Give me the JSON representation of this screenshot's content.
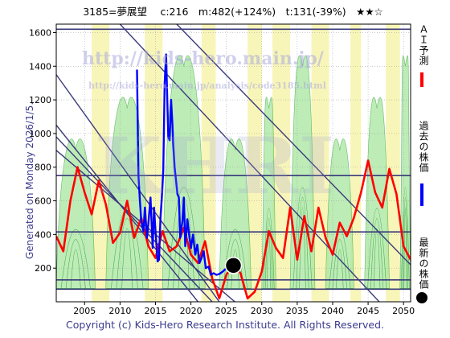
{
  "header": {
    "title": "3185=夢展望　 c:216　m:482(+124%)　t:131(-39%)　★★☆"
  },
  "side_note": "Generated on Monday 2026/1/5.",
  "footer": {
    "copyright": "Copyright (c) Kids-Hero Research Institute. All Rights Reserved."
  },
  "watermarks": {
    "url1": "http://kids-hero.main.jp/",
    "url2": "http://kids-hero.main.jp/analysis/code3185.html",
    "big": "KHRI"
  },
  "legend": {
    "ai": "ＡＩ予測",
    "past": "過去の株価",
    "latest": "最新の株価"
  },
  "colors": {
    "ai_line": "#ff0000",
    "past_line": "#0000ff",
    "latest_dot": "#000000",
    "trend_lines": "#3a3a7a",
    "green_band": "#a8e6a0",
    "yellow_band": "#f6f3a8"
  },
  "chart_data": {
    "type": "line",
    "xlim": [
      2001,
      2051
    ],
    "ylim": [
      0,
      1650
    ],
    "x_ticks": [
      2005,
      2010,
      2015,
      2020,
      2025,
      2030,
      2035,
      2040,
      2045,
      2050
    ],
    "y_ticks": [
      200,
      400,
      600,
      800,
      1000,
      1200,
      1400,
      1600
    ],
    "grid": true,
    "horizontal_levels": [
      1620,
      750,
      415,
      130,
      75
    ],
    "series": [
      {
        "name": "ＡＩ予測",
        "x": [
          2001,
          2002,
          2003,
          2004,
          2005,
          2006,
          2007,
          2008,
          2009,
          2010,
          2011,
          2012,
          2013,
          2014,
          2015,
          2016,
          2017,
          2018,
          2019,
          2020,
          2021,
          2022,
          2023,
          2024,
          2025,
          2026,
          2027,
          2028,
          2029,
          2030,
          2031,
          2032,
          2033,
          2034,
          2035,
          2036,
          2037,
          2038,
          2039,
          2040,
          2041,
          2042,
          2043,
          2044,
          2045,
          2046,
          2047,
          2048,
          2049,
          2050,
          2051
        ],
        "values": [
          390,
          300,
          600,
          800,
          650,
          520,
          720,
          580,
          350,
          410,
          600,
          380,
          500,
          330,
          260,
          420,
          300,
          330,
          440,
          280,
          230,
          360,
          140,
          20,
          160,
          230,
          170,
          20,
          60,
          180,
          420,
          320,
          260,
          560,
          250,
          510,
          300,
          560,
          380,
          280,
          470,
          390,
          500,
          650,
          840,
          650,
          560,
          790,
          640,
          330,
          250
        ]
      },
      {
        "name": "過去の株価",
        "x": [
          2012.4,
          2012.6,
          2012.8,
          2013.0,
          2013.3,
          2013.5,
          2013.8,
          2014.0,
          2014.3,
          2014.6,
          2014.8,
          2015.0,
          2015.3,
          2015.5,
          2015.7,
          2015.9,
          2016.1,
          2016.3,
          2016.5,
          2016.8,
          2017.0,
          2017.2,
          2017.4,
          2017.5,
          2017.7,
          2017.9,
          2018.1,
          2018.3,
          2018.5,
          2018.8,
          2019.0,
          2019.2,
          2019.5,
          2019.8,
          2020.0,
          2020.3,
          2020.6,
          2020.9,
          2021.2,
          2021.5,
          2021.8,
          2022.1,
          2022.5,
          2022.8,
          2023.2,
          2023.6,
          2024.0,
          2024.5,
          2025.0,
          2025.5,
          2026.0
        ],
        "values": [
          1380,
          750,
          600,
          480,
          420,
          560,
          380,
          470,
          620,
          320,
          560,
          420,
          240,
          250,
          500,
          620,
          780,
          1300,
          1470,
          980,
          960,
          1200,
          1050,
          940,
          800,
          720,
          640,
          620,
          380,
          480,
          620,
          330,
          490,
          380,
          320,
          400,
          280,
          340,
          230,
          260,
          300,
          200,
          210,
          160,
          170,
          160,
          165,
          180,
          200,
          230,
          216
        ]
      }
    ],
    "latest_point": {
      "x": 2026.0,
      "y": 216
    }
  }
}
